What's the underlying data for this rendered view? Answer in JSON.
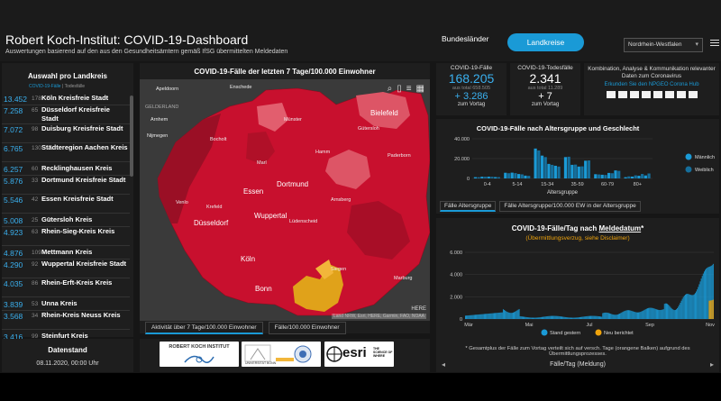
{
  "header": {
    "title": "Robert Koch-Institut: COVID-19-Dashboard",
    "subtitle": "Auswertungen basierend auf den aus den Gesundheitsämtern gemäß IfSG übermittelten Meldedaten",
    "tab_bundeslaender": "Bundesländer",
    "tab_landkreise": "Landkreise",
    "state_select": "Nordrhein-Westfalen",
    "accent": "#1a9ad6"
  },
  "left_panel": {
    "title": "Auswahl pro Landkreis",
    "tab_active": "COVID-19-Fälle",
    "tab_inactive": "Todesfälle",
    "counties": [
      {
        "value": "13.452",
        "small": "178",
        "name": "Köln Kreisfreie Stadt"
      },
      {
        "value": "7.258",
        "small": "65",
        "name": "Düsseldorf Kreisfreie Stadt"
      },
      {
        "value": "7.072",
        "small": "98",
        "name": "Duisburg Kreisfreie Stadt"
      },
      {
        "value": "6.765",
        "small": "130",
        "name": "Städteregion Aachen Kreis"
      },
      {
        "value": "6.257",
        "small": "60",
        "name": "Recklinghausen Kreis"
      },
      {
        "value": "5.876",
        "small": "33",
        "name": "Dortmund Kreisfreie Stadt"
      },
      {
        "value": "5.546",
        "small": "42",
        "name": "Essen Kreisfreie Stadt"
      },
      {
        "value": "5.008",
        "small": "25",
        "name": "Gütersloh Kreis"
      },
      {
        "value": "4.923",
        "small": "63",
        "name": "Rhein-Sieg-Kreis Kreis"
      },
      {
        "value": "4.876",
        "small": "109",
        "name": "Mettmann Kreis"
      },
      {
        "value": "4.290",
        "small": "92",
        "name": "Wuppertal Kreisfreie Stadt"
      },
      {
        "value": "4.035",
        "small": "86",
        "name": "Rhein-Erft-Kreis Kreis"
      },
      {
        "value": "3.839",
        "small": "53",
        "name": "Unna Kreis"
      },
      {
        "value": "3.568",
        "small": "34",
        "name": "Rhein-Kreis Neuss Kreis"
      },
      {
        "value": "3.416",
        "small": "99",
        "name": "Steinfurt Kreis"
      }
    ],
    "datenstand_label": "Datenstand",
    "datenstand_value": "08.11.2020, 00:00 Uhr"
  },
  "map": {
    "title": "COVID-19-Fälle der letzten 7 Tage/100.000 Einwohner",
    "attribution": "Land NRW, Esri, HERE, Garmin, FAO, NOAA",
    "here_label": "HERE",
    "tab_active": "Aktivität über 7 Tage/100.000 Einwohner",
    "tab_inactive": "Fälle/100.000 Einwohner",
    "cities": [
      {
        "id": "apeldoorn",
        "name": "Apeldoorn"
      },
      {
        "id": "enschede",
        "name": "Enschede"
      },
      {
        "id": "gelderland",
        "name": "GELDERLAND"
      },
      {
        "id": "arnhem",
        "name": "Arnhem"
      },
      {
        "id": "muenster",
        "name": "Münster"
      },
      {
        "id": "bielefeld",
        "name": "Bielefeld"
      },
      {
        "id": "nijmegen",
        "name": "Nijmegen"
      },
      {
        "id": "guetersloh",
        "name": "Gütersloh"
      },
      {
        "id": "bocholt",
        "name": "Bocholt"
      },
      {
        "id": "hamm",
        "name": "Hamm"
      },
      {
        "id": "paderborn",
        "name": "Paderborn"
      },
      {
        "id": "marl",
        "name": "Marl"
      },
      {
        "id": "dortmund",
        "name": "Dortmund"
      },
      {
        "id": "essen",
        "name": "Essen"
      },
      {
        "id": "venlo",
        "name": "Venlo"
      },
      {
        "id": "krefeld",
        "name": "Krefeld"
      },
      {
        "id": "wuppertal",
        "name": "Wuppertal"
      },
      {
        "id": "arnsberg",
        "name": "Arnsberg"
      },
      {
        "id": "duesseldorf",
        "name": "Düsseldorf"
      },
      {
        "id": "luedenscheid",
        "name": "Lüdenscheid"
      },
      {
        "id": "koeln",
        "name": "Köln"
      },
      {
        "id": "siegen",
        "name": "Siegen"
      },
      {
        "id": "bonn",
        "name": "Bonn"
      },
      {
        "id": "marburg",
        "name": "Marburg"
      }
    ]
  },
  "stats": {
    "cases": {
      "label": "COVID-19-Fälle",
      "value": "168.205",
      "total": "aus total 658.505",
      "delta": "+ 3.286",
      "sub": "zum Vortag",
      "color": "#3ab0ef"
    },
    "deaths": {
      "label": "COVID-19-Todesfälle",
      "value": "2.341",
      "total": "aus total 11.289",
      "delta": "+ 7",
      "sub": "zum Vortag",
      "color": "#ffffff"
    },
    "info": {
      "text": "Kombination, Analyse & Kommunikation relevanter Daten zum Coronavirus",
      "link": "Erkunden Sie den NPGEO Corona Hub"
    }
  },
  "age_chart": {
    "title": "COVID-19-Fälle nach Altersgruppe und Geschlecht",
    "xlabel": "Altersgruppe",
    "tab_active": "Fälle Altersgruppe",
    "tab_inactive": "Fälle Altersgruppe/100.000 EW in der Altersgruppe"
  },
  "daily_chart": {
    "title_pre": "COVID-19-Fälle/Tag nach ",
    "title_u": "Meldedatum",
    "title_post": "*",
    "subtitle": "(Übermittlungsverzug, siehe Disclaimer)",
    "note": "* Gesamtplus der Fälle zum Vortag verteilt sich auf versch. Tage (orangene Balken) aufgrund des Übermittlungsprozesses.",
    "footer": "Fälle/Tag (Meldung)"
  },
  "logos": {
    "rki": "ROBERT KOCH INSTITUT",
    "bonn_text": "UNIVERSITÄT BONN",
    "esri": "esri",
    "esri_tag": "THE SCIENCE OF WHERE"
  },
  "chart_data": [
    {
      "type": "bar",
      "title": "COVID-19-Fälle nach Altersgruppe und Geschlecht",
      "xlabel": "Altersgruppe",
      "ylabel": "",
      "categories": [
        "0-4",
        "5-14",
        "15-34",
        "35-59",
        "60-79",
        "80+"
      ],
      "ylim": [
        0,
        40000
      ],
      "yticks": [
        "0",
        "20.000",
        "40.000"
      ],
      "series": [
        {
          "name": "Männlich",
          "color": "#1a9ad6",
          "values": [
            1800,
            6000,
            31000,
            29000,
            9000,
            3000
          ]
        },
        {
          "name": "Weiblich",
          "color": "#156e9b",
          "values": [
            1700,
            5500,
            29000,
            29500,
            8500,
            5000
          ]
        }
      ],
      "legend": "right"
    },
    {
      "type": "bar",
      "title": "COVID-19-Fälle/Tag nach Meldedatum*",
      "xlabel": "",
      "ylabel": "",
      "ylim": [
        0,
        6000
      ],
      "yticks": [
        "0",
        "2.000",
        "4.000",
        "6.000"
      ],
      "xticks": [
        "Mär",
        "Mai",
        "Jul",
        "Sep",
        "Nov"
      ],
      "series": [
        {
          "name": "Stand gestern",
          "color": "#1a9ad6"
        },
        {
          "name": "Neu berichtet",
          "color": "#f0a40c"
        }
      ],
      "days": 250,
      "legend": "bottom"
    }
  ]
}
